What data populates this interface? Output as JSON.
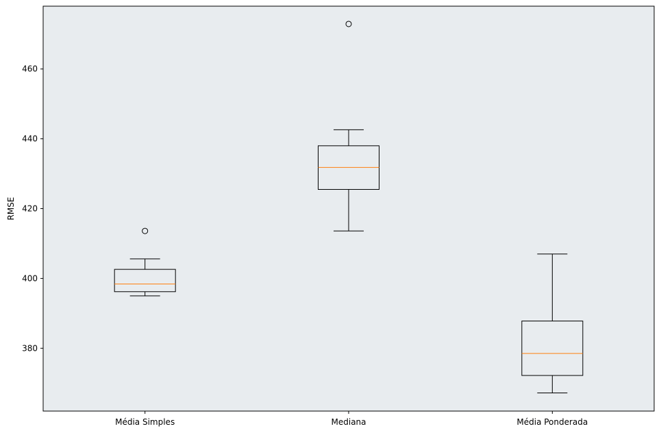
{
  "chart_data": {
    "type": "boxplot",
    "title": "",
    "xlabel": "",
    "ylabel": "RMSE",
    "ylim": [
      362,
      478
    ],
    "yticks": [
      380,
      400,
      420,
      440,
      460
    ],
    "background": "#e8ecef",
    "median_color": "#ff7f0e",
    "box_color": "#000000",
    "grid": false,
    "categories": [
      "Média Simples",
      "Mediana",
      "Média Ponderada"
    ],
    "boxes": [
      {
        "name": "Média Simples",
        "whisker_low": 395.0,
        "q1": 396.2,
        "median": 398.4,
        "q3": 402.6,
        "whisker_high": 405.6,
        "outliers": [
          413.6
        ]
      },
      {
        "name": "Mediana",
        "whisker_low": 413.6,
        "q1": 425.5,
        "median": 431.8,
        "q3": 438.0,
        "whisker_high": 442.6,
        "outliers": [
          472.9
        ]
      },
      {
        "name": "Média Ponderada",
        "whisker_low": 367.2,
        "q1": 372.2,
        "median": 378.5,
        "q3": 387.8,
        "whisker_high": 407.0,
        "outliers": []
      }
    ]
  }
}
